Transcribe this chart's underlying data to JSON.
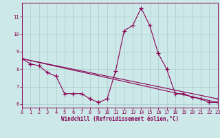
{
  "xlabel": "Windchill (Refroidissement éolien,°C)",
  "bg_color": "#cce8e8",
  "line_color": "#880055",
  "grid_color": "#aacccc",
  "line1_x": [
    0,
    1,
    2,
    3,
    4,
    5,
    6,
    7,
    8,
    9,
    10,
    11,
    12,
    13,
    14,
    15,
    16,
    17,
    18,
    19,
    20,
    21,
    22,
    23
  ],
  "line1_y": [
    8.6,
    8.3,
    8.2,
    7.8,
    7.6,
    6.6,
    6.6,
    6.6,
    6.3,
    6.1,
    6.3,
    7.9,
    10.2,
    10.5,
    11.5,
    10.5,
    8.9,
    8.0,
    6.6,
    6.6,
    6.4,
    6.3,
    6.1,
    6.1
  ],
  "line2_x": [
    0,
    23
  ],
  "line2_y": [
    8.6,
    6.1
  ],
  "line3_x": [
    0,
    23
  ],
  "line3_y": [
    8.6,
    6.3
  ],
  "xlim": [
    0,
    23
  ],
  "ylim": [
    5.8,
    11.8
  ],
  "yticks": [
    6,
    7,
    8,
    9,
    10,
    11
  ],
  "xticks": [
    0,
    1,
    2,
    3,
    4,
    5,
    6,
    7,
    8,
    9,
    10,
    11,
    12,
    13,
    14,
    15,
    16,
    17,
    18,
    19,
    20,
    21,
    22,
    23
  ],
  "tick_fontsize": 5,
  "xlabel_fontsize": 5.5
}
